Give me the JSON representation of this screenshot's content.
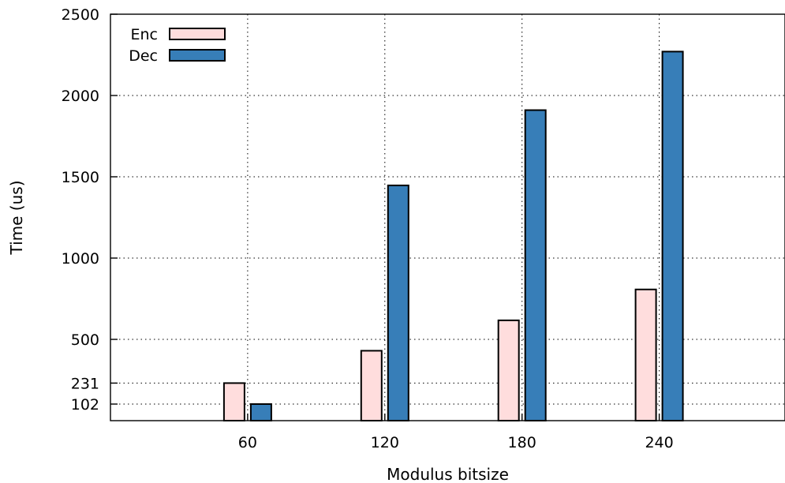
{
  "chart_data": {
    "type": "bar",
    "title": "",
    "xlabel": "Modulus bitsize",
    "ylabel": "Time (us)",
    "categories": [
      "60",
      "120",
      "180",
      "240"
    ],
    "x_range": [
      0,
      295
    ],
    "ylim": [
      0,
      2500
    ],
    "yticks": [
      102,
      231,
      500,
      1000,
      1500,
      2000,
      2500
    ],
    "grid": true,
    "legend_position": "top-left",
    "series": [
      {
        "name": "Enc",
        "color": "#ffdddd",
        "values": [
          231,
          430,
          617,
          807
        ]
      },
      {
        "name": "Dec",
        "color": "#377eb8",
        "values": [
          102,
          1447,
          1910,
          2270
        ]
      }
    ]
  }
}
